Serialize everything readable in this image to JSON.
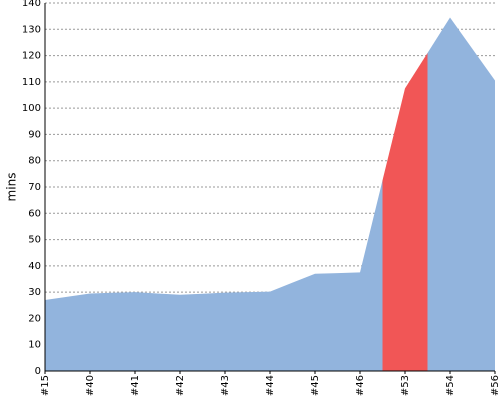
{
  "chart_data": {
    "type": "area",
    "y_label": "mins",
    "categories": [
      "#15",
      "#40",
      "#41",
      "#42",
      "#43",
      "#44",
      "#45",
      "#46",
      "#53",
      "#54",
      "#56"
    ],
    "values": [
      27,
      29.5,
      30,
      29,
      29.8,
      30.2,
      37,
      37.5,
      107.5,
      134.5,
      110.5
    ],
    "colors": [
      "#92b4dd",
      "#92b4dd",
      "#92b4dd",
      "#92b4dd",
      "#92b4dd",
      "#92b4dd",
      "#92b4dd",
      "#92b4dd",
      "#f15656",
      "#92b4dd",
      "#92b4dd"
    ],
    "ylim": [
      0,
      140
    ],
    "yticks": [
      0,
      10,
      20,
      30,
      40,
      50,
      60,
      70,
      80,
      90,
      100,
      110,
      120,
      130,
      140
    ],
    "grid": true
  }
}
